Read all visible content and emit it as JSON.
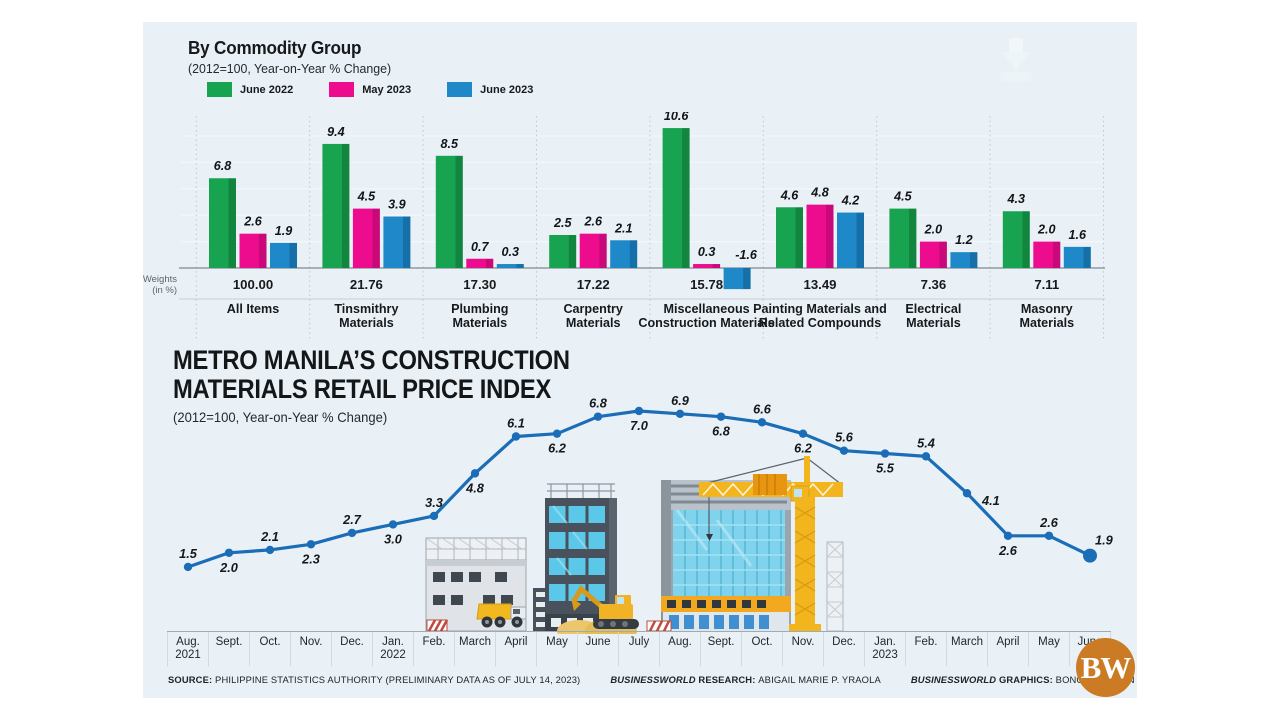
{
  "page": {
    "background": "#ffffff",
    "canvas_bg": "#e9f1f7"
  },
  "chart_data": [
    {
      "type": "bar",
      "title": "By Commodity Group",
      "subtitle": "(2012=100, Year-on-Year % Change)",
      "legend_position": "top",
      "ylim": [
        -2,
        11
      ],
      "grid": "subtle-horizontal",
      "weights_axis_label": [
        "Weights",
        "(in %)"
      ],
      "categories": [
        "All Items",
        "Tinsmithry Materials",
        "Plumbing Materials",
        "Carpentry Materials",
        "Miscellaneous Construction Materials",
        "Painting Materials and Related Compounds",
        "Electrical Materials",
        "Masonry Materials"
      ],
      "category_lines": [
        [
          "All Items"
        ],
        [
          "Tinsmithry",
          "Materials"
        ],
        [
          "Plumbing",
          "Materials"
        ],
        [
          "Carpentry",
          "Materials"
        ],
        [
          "Miscellaneous",
          "Construction Materials"
        ],
        [
          "Painting Materials and",
          "Related Compounds"
        ],
        [
          "Electrical",
          "Materials"
        ],
        [
          "Masonry",
          "Materials"
        ]
      ],
      "weights": [
        "100.00",
        "21.76",
        "17.30",
        "17.22",
        "15.78",
        "13.49",
        "7.36",
        "7.11"
      ],
      "series": [
        {
          "name": "June 2022",
          "color": "#18a350",
          "color_dark": "#12853f",
          "values": [
            6.8,
            9.4,
            8.5,
            2.5,
            10.6,
            4.6,
            4.5,
            4.3
          ]
        },
        {
          "name": "May 2023",
          "color": "#ed0b8e",
          "color_dark": "#c9097a",
          "values": [
            2.6,
            4.5,
            0.7,
            2.6,
            0.3,
            4.8,
            2.0,
            2.0
          ]
        },
        {
          "name": "June 2023",
          "color": "#1e88c9",
          "color_dark": "#156fa8",
          "values": [
            1.9,
            3.9,
            0.3,
            2.1,
            -1.6,
            4.2,
            1.2,
            1.6
          ]
        }
      ]
    },
    {
      "type": "line",
      "title": "METRO MANILA’S CONSTRUCTION MATERIALS RETAIL PRICE INDEX",
      "title_lines": [
        "METRO MANILA’S CONSTRUCTION",
        "MATERIALS RETAIL PRICE INDEX"
      ],
      "subtitle": "(2012=100, Year-on-Year % Change)",
      "line_color": "#1a6db6",
      "ylim": [
        0,
        7.5
      ],
      "grid": "off",
      "x": [
        "Aug. 2021",
        "Sept.",
        "Oct.",
        "Nov.",
        "Dec.",
        "Jan. 2022",
        "Feb.",
        "March",
        "April",
        "May",
        "June",
        "July",
        "Aug.",
        "Sept.",
        "Oct.",
        "Nov.",
        "Dec.",
        "Jan. 2023",
        "Feb.",
        "March",
        "April",
        "May",
        "June"
      ],
      "months": [
        {
          "m": "Aug.",
          "yr": "2021"
        },
        {
          "m": "Sept."
        },
        {
          "m": "Oct."
        },
        {
          "m": "Nov."
        },
        {
          "m": "Dec."
        },
        {
          "m": "Jan.",
          "yr": "2022"
        },
        {
          "m": "Feb."
        },
        {
          "m": "March"
        },
        {
          "m": "April"
        },
        {
          "m": "May"
        },
        {
          "m": "June"
        },
        {
          "m": "July"
        },
        {
          "m": "Aug."
        },
        {
          "m": "Sept."
        },
        {
          "m": "Oct."
        },
        {
          "m": "Nov."
        },
        {
          "m": "Dec."
        },
        {
          "m": "Jan.",
          "yr": "2023"
        },
        {
          "m": "Feb."
        },
        {
          "m": "March"
        },
        {
          "m": "April"
        },
        {
          "m": "May"
        },
        {
          "m": "June"
        }
      ],
      "values": [
        1.5,
        2.0,
        2.1,
        2.3,
        2.7,
        3.0,
        3.3,
        4.8,
        6.1,
        6.2,
        6.8,
        7.0,
        6.9,
        6.8,
        6.6,
        6.2,
        5.6,
        5.5,
        5.4,
        4.1,
        2.6,
        2.6,
        1.9
      ],
      "label_side": [
        "a",
        "b",
        "a",
        "b",
        "a",
        "b",
        "a",
        "b",
        "a",
        "b",
        "a",
        "b",
        "a",
        "b",
        "a",
        "b",
        "a",
        "b",
        "a",
        "br",
        "b",
        "a",
        "ar"
      ]
    }
  ],
  "footer": {
    "source": {
      "label": "SOURCE:",
      "text": "PHILIPPINE STATISTICS AUTHORITY (PRELIMINARY DATA AS OF JULY 14, 2023)"
    },
    "research": {
      "brand": "BUSINESSWORLD",
      "label": "RESEARCH:",
      "text": "ABIGAIL MARIE P. YRAOLA"
    },
    "graphics": {
      "brand": "BUSINESSWORLD",
      "label": "GRAPHICS:",
      "text": "BONG R. FORTIN"
    }
  },
  "logo": {
    "text": "BW",
    "color": "#cb7b23"
  }
}
